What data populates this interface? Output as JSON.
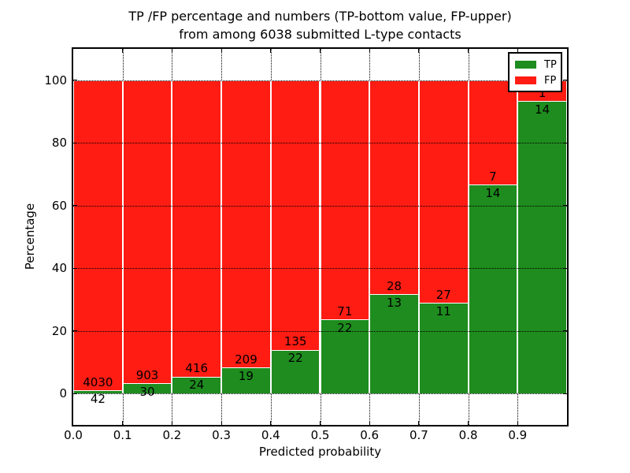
{
  "chart_data": {
    "type": "bar",
    "stacked": true,
    "title_line1": "TP /FP percentage and numbers (TP-bottom value, FP-upper)",
    "title_line2": "from among 6038 submitted L-type contacts",
    "xlabel": "Predicted probability",
    "ylabel": "Percentage",
    "x_tick_labels": [
      "0.0",
      "0.1",
      "0.2",
      "0.3",
      "0.4",
      "0.5",
      "0.6",
      "0.7",
      "0.8",
      "0.9"
    ],
    "y_ticks": [
      0,
      20,
      40,
      60,
      80,
      100
    ],
    "xlim": [
      0.0,
      1.0
    ],
    "ylim": [
      -10,
      110
    ],
    "bin_edges": [
      0.0,
      0.1,
      0.2,
      0.3,
      0.4,
      0.5,
      0.6,
      0.7,
      0.8,
      0.9,
      1.0
    ],
    "grid": "dotted",
    "legend_position": "upper right",
    "series": [
      {
        "name": "TP",
        "color": "#1e8c1e",
        "values": [
          42,
          30,
          24,
          19,
          22,
          22,
          13,
          11,
          14,
          14
        ]
      },
      {
        "name": "FP",
        "color": "#fe1c13",
        "values": [
          4030,
          903,
          416,
          209,
          135,
          71,
          28,
          27,
          7,
          1
        ]
      }
    ],
    "tp_percentages": [
      1.03,
      3.22,
      5.45,
      8.33,
      14.01,
      23.66,
      31.71,
      28.95,
      66.67,
      93.33
    ],
    "total_shown_in_title": 6038
  }
}
